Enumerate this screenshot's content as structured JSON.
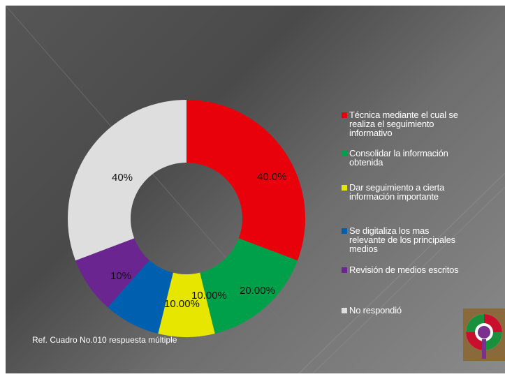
{
  "chart_data": {
    "type": "pie",
    "categories": [
      "Técnica mediante el cual se realiza el seguimiento informativo",
      "Consolidar la información obtenida",
      "Dar seguimiento a cierta información importante",
      "Se digitaliza los mas relevante de los principales medios",
      "Revisión de medios escritos",
      "No respondió"
    ],
    "values": [
      30,
      15,
      7.5,
      7.5,
      7.5,
      30
    ],
    "data_labels": [
      "40.0%",
      "20.00%",
      "10.00%",
      "10.00%",
      "10%",
      "40%"
    ],
    "colors": [
      "#e8000b",
      "#00a04a",
      "#e6e600",
      "#0060b0",
      "#6a2591",
      "#dedede"
    ],
    "legend_lines": [
      [
        "Técnica mediante el cual se",
        "realiza el seguimiento",
        "informativo"
      ],
      [
        "Consolidar la información",
        "obtenida"
      ],
      [
        "Dar seguimiento a cierta",
        "información importante"
      ],
      [
        "Se digitaliza los mas",
        "relevante de los principales",
        "medios"
      ],
      [
        "Revisión de medios escritos"
      ],
      [
        "No respondió"
      ]
    ],
    "legend_placement": "right"
  },
  "footer": {
    "source_note": "Ref. Cuadro No.010 respuesta múltiple"
  },
  "logo": {
    "icon": "circular-emblem-icon",
    "colors": [
      "#c8102e",
      "#1a8f3c",
      "#ffffff",
      "#7b2f8e",
      "#d9b25c"
    ]
  }
}
